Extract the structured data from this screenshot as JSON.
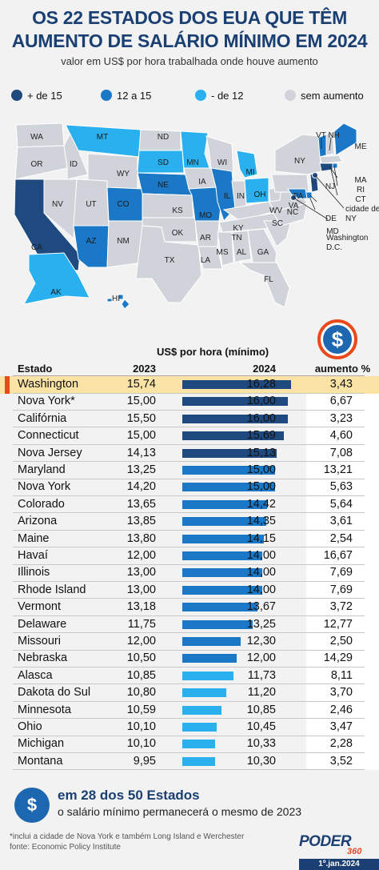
{
  "header": {
    "title_line1": "OS 22 ESTADOS DOS EUA QUE TÊM",
    "title_line2": "AUMENTO DE SALÁRIO MÍNIMO EM 2024",
    "subtitle": "valor em US$ por hora trabalhada onde houve aumento"
  },
  "colors": {
    "tier1": "#1f4a80",
    "tier2": "#1a78c6",
    "tier3": "#2ab0ee",
    "none": "#d0d4da",
    "highlight": "#fbe3a6",
    "accent": "#e84a1c"
  },
  "legend": [
    {
      "label": "+ de 15",
      "color": "#1f4a80"
    },
    {
      "label": "12 a 15",
      "color": "#1a78c6"
    },
    {
      "label": "- de 12",
      "color": "#2ab0ee"
    },
    {
      "label": "sem aumento",
      "color": "#d0d4da"
    }
  ],
  "map": {
    "labels": [
      "WA",
      "OR",
      "CA",
      "ID",
      "NV",
      "MT",
      "WY",
      "UT",
      "AZ",
      "CO",
      "NM",
      "ND",
      "SD",
      "NE",
      "KS",
      "OK",
      "TX",
      "MN",
      "IA",
      "MO",
      "AR",
      "LA",
      "WI",
      "IL",
      "MI",
      "IN",
      "OH",
      "KY",
      "TN",
      "MS",
      "AL",
      "GA",
      "FL",
      "SC",
      "NC",
      "VA",
      "WV",
      "PA",
      "NY",
      "ME",
      "VT NH",
      "MA",
      "RI",
      "CT",
      "NJ",
      "DE",
      "MD",
      "AK",
      "HI"
    ],
    "callouts": [
      "cidade de NY",
      "Washington D.C."
    ]
  },
  "coin_icon": "dollar-coin-icon",
  "chart_data": {
    "type": "table",
    "title": "OS 22 ESTADOS DOS EUA QUE TÊM AUMENTO DE SALÁRIO MÍNIMO EM 2024",
    "value_header": "US$ por hora (mínimo)",
    "columns": [
      "Estado",
      "2023",
      "2024",
      "aumento %"
    ],
    "bar_scale_max": 16.28,
    "rows": [
      {
        "state": "Washington",
        "v2023": "15,74",
        "v2024": "16,28",
        "pct": "3,43",
        "value": 16.28,
        "tier": 1,
        "highlight": true
      },
      {
        "state": "Nova York*",
        "v2023": "15,00",
        "v2024": "16,00",
        "pct": "6,67",
        "value": 16.0,
        "tier": 1
      },
      {
        "state": "Califórnia",
        "v2023": "15,50",
        "v2024": "16,00",
        "pct": "3,23",
        "value": 16.0,
        "tier": 1
      },
      {
        "state": "Connecticut",
        "v2023": "15,00",
        "v2024": "15,69",
        "pct": "4,60",
        "value": 15.69,
        "tier": 1
      },
      {
        "state": "Nova Jersey",
        "v2023": "14,13",
        "v2024": "15,13",
        "pct": "7,08",
        "value": 15.13,
        "tier": 1
      },
      {
        "state": "Maryland",
        "v2023": "13,25",
        "v2024": "15,00",
        "pct": "13,21",
        "value": 15.0,
        "tier": 2
      },
      {
        "state": "Nova York",
        "v2023": "14,20",
        "v2024": "15,00",
        "pct": "5,63",
        "value": 15.0,
        "tier": 2
      },
      {
        "state": "Colorado",
        "v2023": "13,65",
        "v2024": "14,42",
        "pct": "5,64",
        "value": 14.42,
        "tier": 2
      },
      {
        "state": "Arizona",
        "v2023": "13,85",
        "v2024": "14,35",
        "pct": "3,61",
        "value": 14.35,
        "tier": 2
      },
      {
        "state": "Maine",
        "v2023": "13,80",
        "v2024": "14,15",
        "pct": "2,54",
        "value": 14.15,
        "tier": 2
      },
      {
        "state": "Havaí",
        "v2023": "12,00",
        "v2024": "14,00",
        "pct": "16,67",
        "value": 14.0,
        "tier": 2
      },
      {
        "state": "Illinois",
        "v2023": "13,00",
        "v2024": "14,00",
        "pct": "7,69",
        "value": 14.0,
        "tier": 2
      },
      {
        "state": "Rhode Island",
        "v2023": "13,00",
        "v2024": "14,00",
        "pct": "7,69",
        "value": 14.0,
        "tier": 2
      },
      {
        "state": "Vermont",
        "v2023": "13,18",
        "v2024": "13,67",
        "pct": "3,72",
        "value": 13.67,
        "tier": 2
      },
      {
        "state": "Delaware",
        "v2023": "11,75",
        "v2024": "13,25",
        "pct": "12,77",
        "value": 13.25,
        "tier": 2
      },
      {
        "state": "Missouri",
        "v2023": "12,00",
        "v2024": "12,30",
        "pct": "2,50",
        "value": 12.3,
        "tier": 2
      },
      {
        "state": "Nebraska",
        "v2023": "10,50",
        "v2024": "12,00",
        "pct": "14,29",
        "value": 12.0,
        "tier": 2
      },
      {
        "state": "Alasca",
        "v2023": "10,85",
        "v2024": "11,73",
        "pct": "8,11",
        "value": 11.73,
        "tier": 3
      },
      {
        "state": "Dakota do Sul",
        "v2023": "10,80",
        "v2024": "11,20",
        "pct": "3,70",
        "value": 11.2,
        "tier": 3
      },
      {
        "state": "Minnesota",
        "v2023": "10,59",
        "v2024": "10,85",
        "pct": "2,46",
        "value": 10.85,
        "tier": 3
      },
      {
        "state": "Ohio",
        "v2023": "10,10",
        "v2024": "10,45",
        "pct": "3,47",
        "value": 10.45,
        "tier": 3
      },
      {
        "state": "Michigan",
        "v2023": "10,10",
        "v2024": "10,33",
        "pct": "2,28",
        "value": 10.33,
        "tier": 3
      },
      {
        "state": "Montana",
        "v2023": "9,95",
        "v2024": "10,30",
        "pct": "3,52",
        "value": 10.3,
        "tier": 3
      }
    ]
  },
  "footer": {
    "icon": "money-icon",
    "headline": "em 28 dos 50 Estados",
    "text": "o salário mínimo permanecerá o mesmo de 2023",
    "note1": "*inclui a cidade de Nova York e também Long Island e Werchester",
    "note2": "fonte: Economic Policy Institute",
    "brand": "PODER",
    "brand_num": "360",
    "date": "1º.jan.2024"
  }
}
